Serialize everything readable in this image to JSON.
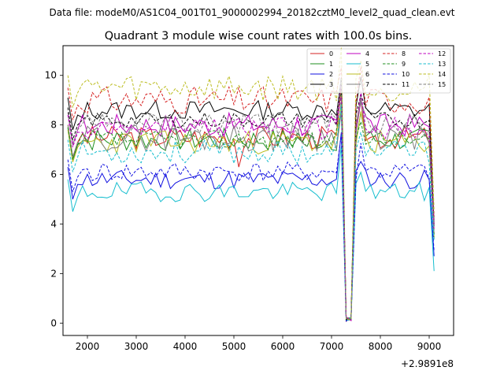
{
  "suptitle": "Data file: modeM0/AS1C04_001T01_9000002994_20182cztM0_level2_quad_clean.evt",
  "chart_data": {
    "type": "line",
    "title": "Quadrant 3 module wise count rates with 100.0s bins.",
    "xlabel": "",
    "ylabel": "",
    "x_offset_label": "+2.9891e8",
    "xlim": [
      1500,
      9500
    ],
    "ylim": [
      -0.5,
      11.2
    ],
    "xticks": [
      2000,
      3000,
      4000,
      5000,
      6000,
      7000,
      8000,
      9000
    ],
    "yticks": [
      0,
      2,
      4,
      6,
      8,
      10
    ],
    "x_start": 1600,
    "x_step": 100,
    "n_points": 76,
    "legend_position": "top-right",
    "series": [
      {
        "name": "0",
        "color": "#d62020",
        "dash": "solid",
        "base": 7.5,
        "amp": 0.3,
        "seed": 3,
        "tail": 3.6,
        "spikes": {
          "5100": 6.3
        }
      },
      {
        "name": "1",
        "color": "#1f8f1f",
        "dash": "solid",
        "base": 7.4,
        "amp": 0.3,
        "seed": 7,
        "tail": 3.4
      },
      {
        "name": "2",
        "color": "#1010e0",
        "dash": "solid",
        "base": 5.8,
        "amp": 0.25,
        "seed": 11,
        "tail": 2.7
      },
      {
        "name": "3",
        "color": "#000000",
        "dash": "solid",
        "base": 8.6,
        "amp": 0.25,
        "seed": 13,
        "tail": 4.0
      },
      {
        "name": "4",
        "color": "#bf00bf",
        "dash": "solid",
        "base": 8.0,
        "amp": 0.3,
        "seed": 17,
        "tail": 3.9
      },
      {
        "name": "5",
        "color": "#17becf",
        "dash": "solid",
        "base": 5.3,
        "amp": 0.25,
        "seed": 19,
        "tail": 2.1
      },
      {
        "name": "6",
        "color": "#bcbd22",
        "dash": "solid",
        "base": 7.3,
        "amp": 0.3,
        "seed": 23,
        "tail": 3.5
      },
      {
        "name": "7",
        "color": "#7f7f7f",
        "dash": "solid",
        "base": 7.5,
        "amp": 0.35,
        "seed": 29,
        "tail": 3.6
      },
      {
        "name": "8",
        "color": "#d62020",
        "dash": "dashed",
        "base": 9.0,
        "amp": 0.35,
        "seed": 31,
        "tail": 4.3
      },
      {
        "name": "9",
        "color": "#1f8f1f",
        "dash": "dashed",
        "base": 7.4,
        "amp": 0.25,
        "seed": 37,
        "tail": 3.5
      },
      {
        "name": "10",
        "color": "#1010e0",
        "dash": "dashed",
        "base": 6.1,
        "amp": 0.25,
        "seed": 41,
        "tail": 2.9
      },
      {
        "name": "11",
        "color": "#000000",
        "dash": "dashed",
        "base": 8.2,
        "amp": 0.2,
        "seed": 43,
        "tail": 3.9
      },
      {
        "name": "12",
        "color": "#bf00bf",
        "dash": "dashed",
        "base": 7.9,
        "amp": 0.3,
        "seed": 47,
        "tail": 3.8
      },
      {
        "name": "13",
        "color": "#17becf",
        "dash": "dashed",
        "base": 6.9,
        "amp": 0.3,
        "seed": 53,
        "tail": 3.3
      },
      {
        "name": "14",
        "color": "#bcbd22",
        "dash": "dashed",
        "base": 9.5,
        "amp": 0.35,
        "seed": 59,
        "tail": 4.5
      },
      {
        "name": "15",
        "color": "#7f7f7f",
        "dash": "dashed",
        "base": 8.0,
        "amp": 0.3,
        "seed": 61,
        "tail": 3.8
      }
    ],
    "gap_profile": {
      "7000": 0.0,
      "7100": 0.0,
      "7200": 0.4,
      "7300": -8.0,
      "7400": -8.3,
      "7500": 0.0,
      "7600": 1.1,
      "7700": 0.2
    }
  }
}
